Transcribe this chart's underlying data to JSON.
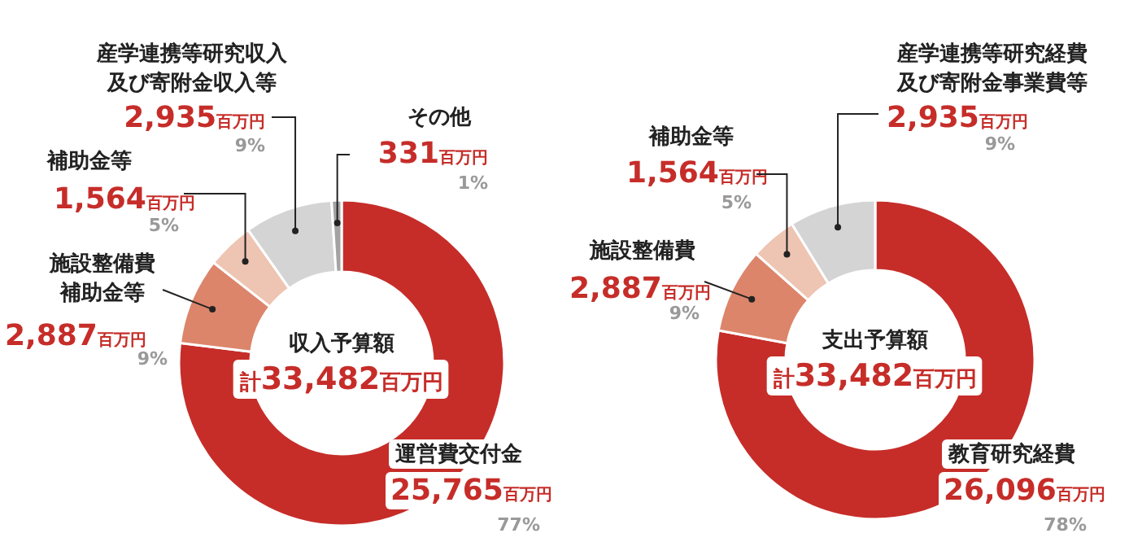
{
  "chart_data": [
    {
      "type": "donut",
      "title": "収入予算額",
      "subtitle": "計33,482百万円",
      "categories": [
        "運営費交付金",
        "施設整備費補助金等",
        "補助金等",
        "産学連携等研究収入及び寄附金収入等",
        "その他"
      ],
      "values": [
        25765,
        2887,
        1564,
        2935,
        331
      ],
      "colors": [
        "#c62d29",
        "#dc856b",
        "#eec4b3",
        "#d4d4d4",
        "#a3a3a3"
      ],
      "value_labels": [
        "25,765百万円",
        "2,887百万円",
        "1,564百万円",
        "2,935百万円",
        "331百万円"
      ],
      "annotations": [
        "77%",
        "9%",
        "5%",
        "9%",
        "1%"
      ]
    },
    {
      "type": "donut",
      "title": "支出予算額",
      "subtitle": "計33,482百万円",
      "categories": [
        "教育研究経費",
        "施設整備費",
        "補助金等",
        "産学連携等研究経費及び寄附金事業費等"
      ],
      "values": [
        26096,
        2887,
        1564,
        2935
      ],
      "colors": [
        "#c62d29",
        "#dc856b",
        "#eec4b3",
        "#d4d4d4"
      ],
      "value_labels": [
        "26,096百万円",
        "2,887百万円",
        "1,564百万円",
        "2,935百万円"
      ],
      "annotations": [
        "78%",
        "9%",
        "5%",
        "9%"
      ]
    }
  ]
}
